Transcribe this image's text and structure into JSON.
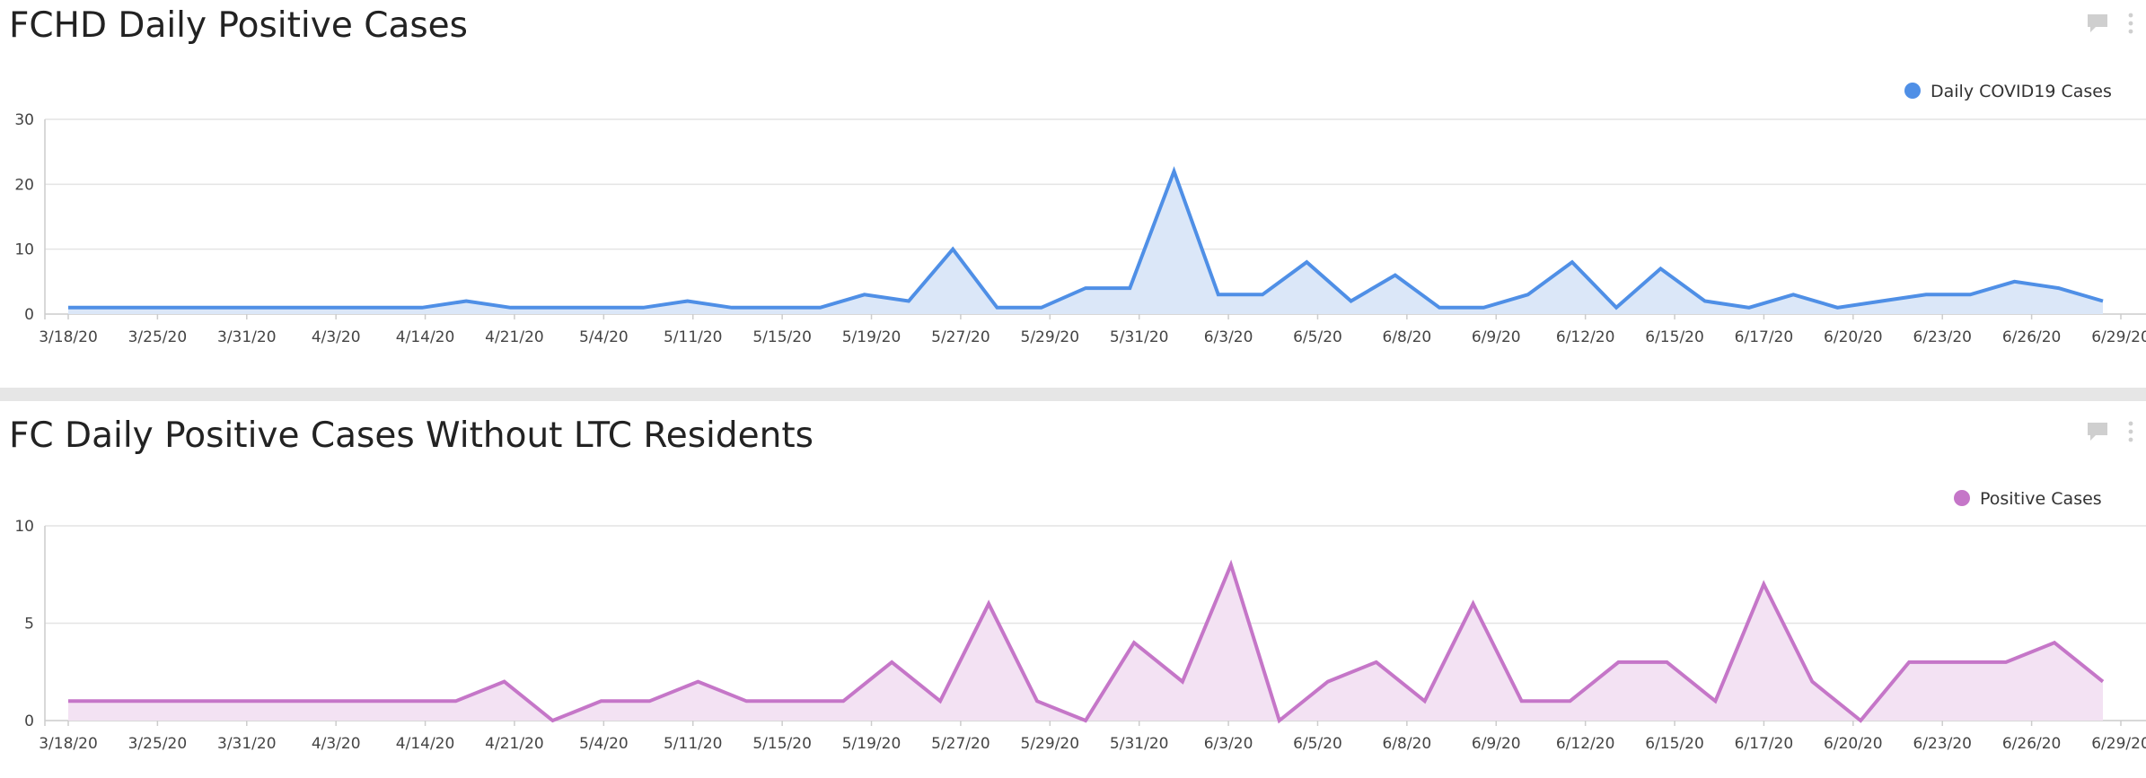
{
  "chart_data": [
    {
      "type": "area",
      "title": "FCHD Daily Positive Cases",
      "xlabel": "",
      "ylabel": "",
      "ylim": [
        0,
        30
      ],
      "yticks": [
        0,
        10,
        20,
        30
      ],
      "grid": true,
      "legend": "top-right",
      "color": "#4f8fe6",
      "fill": "#dbe7f8",
      "x_tick_labels": [
        "3/18/20",
        "3/25/20",
        "3/31/20",
        "4/3/20",
        "4/14/20",
        "4/21/20",
        "5/4/20",
        "5/11/20",
        "5/15/20",
        "5/19/20",
        "5/27/20",
        "5/29/20",
        "5/31/20",
        "6/3/20",
        "6/5/20",
        "6/8/20",
        "6/9/20",
        "6/12/20",
        "6/15/20",
        "6/17/20",
        "6/20/20",
        "6/23/20",
        "6/26/20",
        "6/29/20"
      ],
      "series": [
        {
          "name": "Daily COVID19 Cases",
          "values": [
            1,
            1,
            1,
            1,
            1,
            1,
            1,
            1,
            1,
            2,
            1,
            1,
            1,
            1,
            2,
            1,
            1,
            1,
            3,
            2,
            10,
            1,
            1,
            4,
            4,
            22,
            3,
            3,
            8,
            2,
            6,
            1,
            1,
            3,
            8,
            1,
            7,
            2,
            1,
            3,
            1,
            2,
            3,
            3,
            5,
            4,
            2
          ]
        }
      ]
    },
    {
      "type": "area",
      "title": "FC Daily Positive Cases Without LTC Residents",
      "xlabel": "",
      "ylabel": "",
      "ylim": [
        0,
        10
      ],
      "yticks": [
        0,
        5,
        10
      ],
      "grid": true,
      "legend": "top-right",
      "color": "#c576c8",
      "fill": "#f3e2f3",
      "x_tick_labels": [
        "3/18/20",
        "3/25/20",
        "3/31/20",
        "4/3/20",
        "4/14/20",
        "4/21/20",
        "5/4/20",
        "5/11/20",
        "5/15/20",
        "5/19/20",
        "5/27/20",
        "5/29/20",
        "5/31/20",
        "6/3/20",
        "6/5/20",
        "6/8/20",
        "6/9/20",
        "6/12/20",
        "6/15/20",
        "6/17/20",
        "6/20/20",
        "6/23/20",
        "6/26/20",
        "6/29/20"
      ],
      "series": [
        {
          "name": "Positive Cases",
          "values": [
            1,
            1,
            1,
            1,
            1,
            1,
            1,
            1,
            1,
            2,
            0,
            1,
            1,
            2,
            1,
            1,
            1,
            3,
            1,
            6,
            1,
            0,
            4,
            2,
            8,
            0,
            2,
            3,
            1,
            6,
            1,
            1,
            3,
            3,
            1,
            7,
            2,
            0,
            3,
            3,
            3,
            4,
            2
          ]
        }
      ]
    }
  ]
}
